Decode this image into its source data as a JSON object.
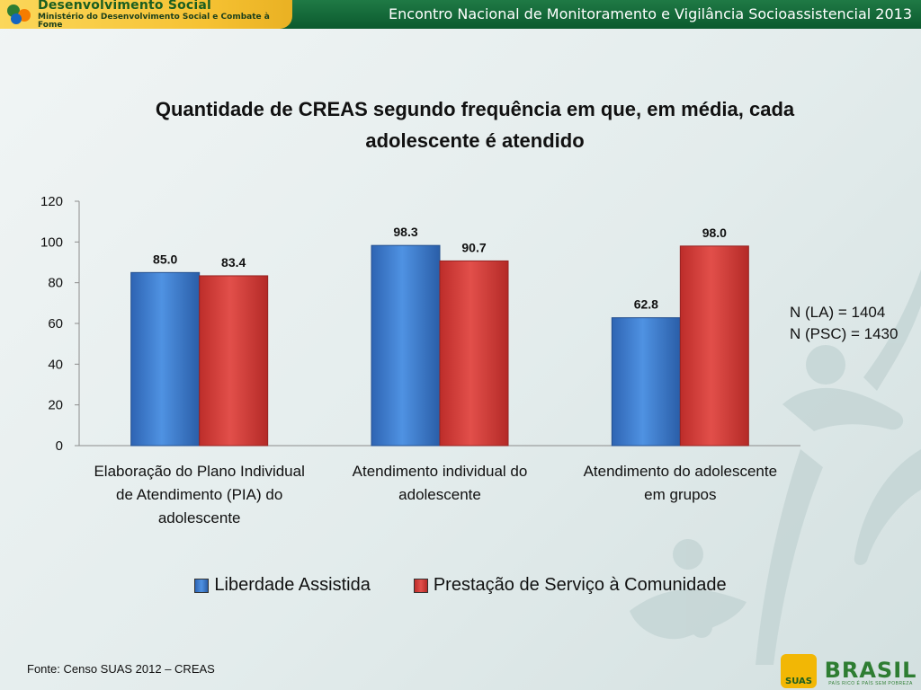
{
  "header": {
    "ministry_name": "Desenvolvimento Social",
    "ministry_subtitle": "Ministério do Desenvolvimento Social e Combate à Fome",
    "event_title": "Encontro Nacional de Monitoramento e Vigilância Socioassistencial 2013"
  },
  "colors": {
    "series_1": "#3f7fd0",
    "series_2": "#d9403c",
    "header_green": "#0b5a2e",
    "header_yellow": "#f6c233"
  },
  "chart_data": {
    "type": "bar",
    "title_line1": "Quantidade de CREAS segundo frequência em que, em média, cada",
    "title_line2": "adolescente é atendido",
    "categories": [
      [
        "Elaboração do Plano Individual",
        "de Atendimento (PIA) do",
        "adolescente"
      ],
      [
        "Atendimento individual do",
        "adolescente"
      ],
      [
        "Atendimento do adolescente",
        "em grupos"
      ]
    ],
    "series": [
      {
        "name": "Liberdade Assistida",
        "values": [
          85.0,
          98.3,
          62.8
        ],
        "labels": [
          "85.0",
          "98.3",
          "62.8"
        ]
      },
      {
        "name": "Prestação de Serviço à Comunidade",
        "values": [
          83.4,
          90.7,
          98.0
        ],
        "labels": [
          "83.4",
          "90.7",
          "98.0"
        ]
      }
    ],
    "ylim": [
      0,
      120
    ],
    "yticks": [
      0,
      20,
      40,
      60,
      80,
      100,
      120
    ],
    "grid": false,
    "legend": "bottom"
  },
  "notes": {
    "n_la": "N (LA) = 1404",
    "n_psc": "N (PSC) = 1430"
  },
  "footer": {
    "source": "Fonte: Censo SUAS 2012 – CREAS",
    "suas_logo": "SUAS",
    "brasil_logo": "BRASIL",
    "brasil_tagline": "PAÍS RICO É PAÍS SEM POBREZA"
  }
}
